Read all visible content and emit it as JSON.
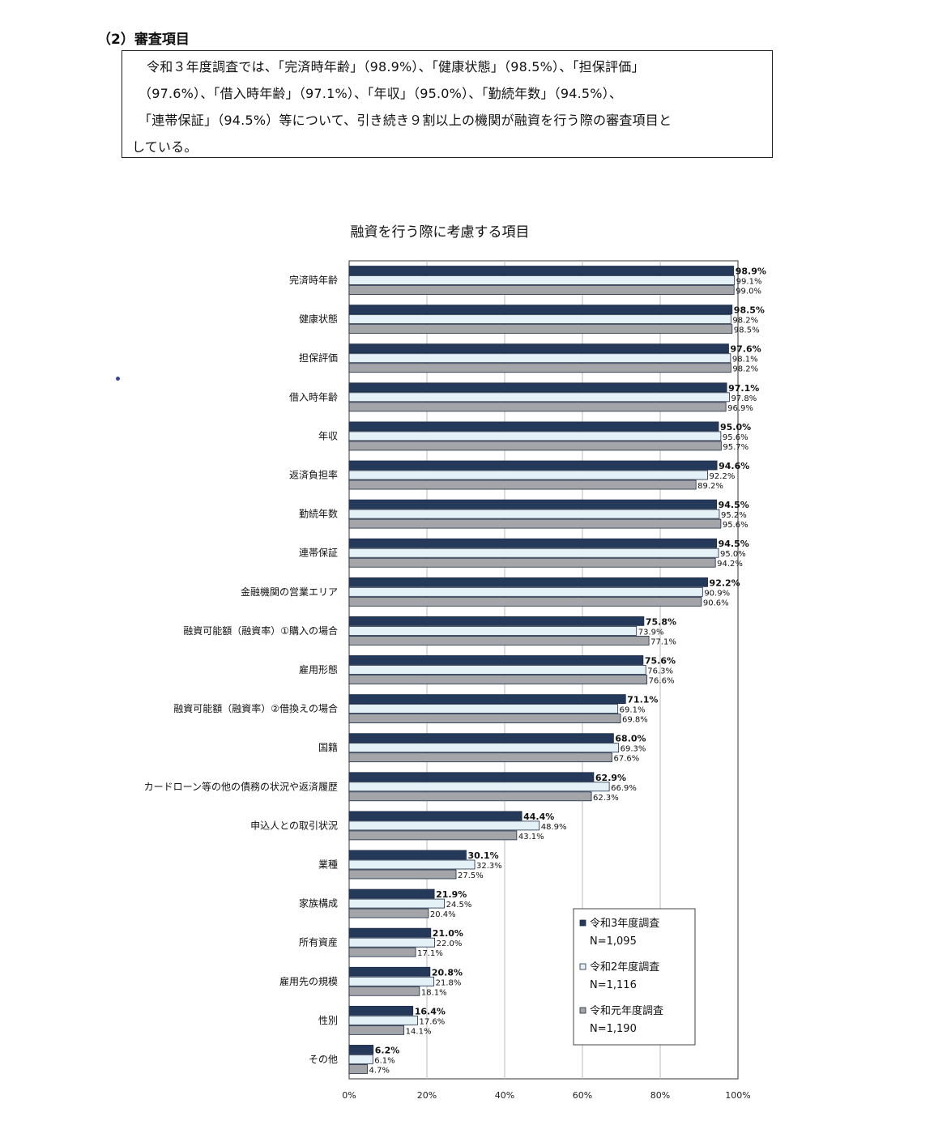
{
  "section": {
    "heading": "（2）審査項目",
    "summary_lines": [
      "令和３年度調査では、「完済時年齢」（98.9%）、「健康状態」（98.5%）、「担保評価」",
      "（97.6%）、「借入時年齢」（97.1%）、「年収」（95.0%）、「勤続年数」（94.5%）、",
      "「連帯保証」（94.5%）等について、引き続き９割以上の機関が融資を行う際の審査項目と",
      "している。"
    ]
  },
  "chart_data": {
    "type": "bar",
    "orientation": "horizontal",
    "title": "融資を行う際に考慮する項目",
    "categories": [
      "完済時年齢",
      "健康状態",
      "担保評価",
      "借入時年齢",
      "年収",
      "返済負担率",
      "勤続年数",
      "連帯保証",
      "金融機関の営業エリア",
      "融資可能額（融資率）①購入の場合",
      "雇用形態",
      "融資可能額（融資率）②借換えの場合",
      "国籍",
      "カードローン等の他の債務の状況や返済履歴",
      "申込人との取引状況",
      "業種",
      "家族構成",
      "所有資産",
      "雇用先の規模",
      "性別",
      "その他"
    ],
    "series": [
      {
        "name": "令和3年度調査",
        "n_label": "N=1,095",
        "color": "#253a5a",
        "values": [
          98.9,
          98.5,
          97.6,
          97.1,
          95.0,
          94.6,
          94.5,
          94.5,
          92.2,
          75.8,
          75.6,
          71.1,
          68.0,
          62.9,
          44.4,
          30.1,
          21.9,
          21.0,
          20.8,
          16.4,
          6.2
        ],
        "labels": [
          "98.9%",
          "98.5%",
          "97.6%",
          "97.1%",
          "95.0%",
          "94.6%",
          "94.5%",
          "94.5%",
          "92.2%",
          "75.8%",
          "75.6%",
          "71.1%",
          "68.0%",
          "62.9%",
          "44.4%",
          "30.1%",
          "21.9%",
          "21.0%",
          "20.8%",
          "16.4%",
          "6.2%"
        ]
      },
      {
        "name": "令和2年度調査",
        "n_label": "N=1,116",
        "color": "#e4f2f8",
        "values": [
          99.1,
          98.2,
          98.1,
          97.8,
          95.6,
          92.2,
          95.2,
          95.0,
          90.9,
          73.9,
          76.3,
          69.1,
          69.3,
          66.9,
          48.9,
          32.3,
          24.5,
          22.0,
          21.8,
          17.6,
          6.1
        ],
        "labels": [
          "99.1%",
          "98.2%",
          "98.1%",
          "97.8%",
          "95.6%",
          "92.2%",
          "95.2%",
          "95.0%",
          "90.9%",
          "73.9%",
          "76.3%",
          "69.1%",
          "69.3%",
          "66.9%",
          "48.9%",
          "32.3%",
          "24.5%",
          "22.0%",
          "21.8%",
          "17.6%",
          "6.1%"
        ]
      },
      {
        "name": "令和元年度調査",
        "n_label": "N=1,190",
        "color": "#a3a5a8",
        "values": [
          99.0,
          98.5,
          98.2,
          96.9,
          95.7,
          89.2,
          95.6,
          94.2,
          90.6,
          77.1,
          76.6,
          69.8,
          67.6,
          62.3,
          43.1,
          27.5,
          20.4,
          17.1,
          18.1,
          14.1,
          4.7
        ],
        "labels": [
          "99.0%",
          "98.5%",
          "98.2%",
          "96.9%",
          "95.7%",
          "89.2%",
          "95.6%",
          "94.2%",
          "90.6%",
          "77.1%",
          "76.6%",
          "69.8%",
          "67.6%",
          "62.3%",
          "43.1%",
          "27.5%",
          "20.4%",
          "17.1%",
          "18.1%",
          "14.1%",
          "4.7%"
        ]
      }
    ],
    "xlim": [
      0,
      100
    ],
    "x_ticks": [
      0,
      20,
      40,
      60,
      80,
      100
    ],
    "x_tick_labels": [
      "0%",
      "20%",
      "40%",
      "60%",
      "80%",
      "100%"
    ],
    "grid": true,
    "legend_position": "bottom-right"
  }
}
